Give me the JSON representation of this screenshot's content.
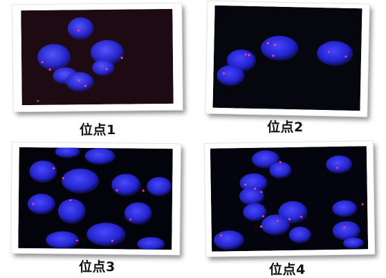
{
  "panels": [
    {
      "id": "p1",
      "caption": "位点1",
      "background": "#1e0a12"
    },
    {
      "id": "p2",
      "caption": "位点2",
      "background": "#05060e"
    },
    {
      "id": "p3",
      "caption": "位点3",
      "background": "#03030c"
    },
    {
      "id": "p4",
      "caption": "位点4",
      "background": "#04040f"
    }
  ],
  "colors": {
    "nucleus": "#2a2ad8",
    "signal": "#ff3a9a"
  }
}
